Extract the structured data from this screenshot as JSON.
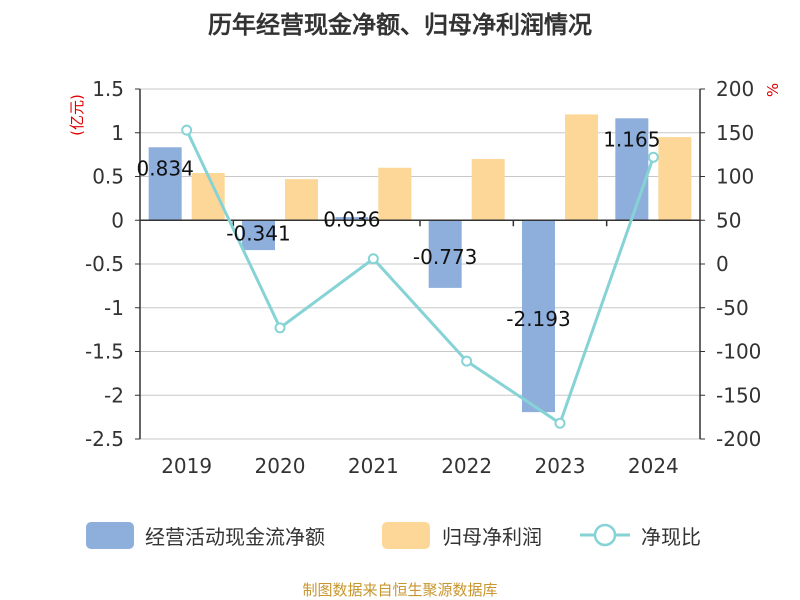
{
  "chart_data": {
    "type": "bar+line",
    "title": "历年经营现金净额、归母净利润情况",
    "categories": [
      "2019",
      "2020",
      "2021",
      "2022",
      "2023",
      "2024"
    ],
    "series": [
      {
        "name": "经营活动现金流净额",
        "type": "bar",
        "axis": "left",
        "color": "#8eaedc",
        "values": [
          0.834,
          -0.341,
          0.036,
          -0.773,
          -2.193,
          1.165
        ],
        "labels": [
          "0.834",
          "-0.341",
          "0.036",
          "-0.773",
          "-2.193",
          "1.165"
        ]
      },
      {
        "name": "归母净利润",
        "type": "bar",
        "axis": "left",
        "color": "#fdd797",
        "values": [
          0.54,
          0.47,
          0.6,
          0.7,
          1.21,
          0.95
        ]
      },
      {
        "name": "净现比",
        "type": "line",
        "axis": "right",
        "color": "#86d3d6",
        "values": [
          153,
          -73,
          6,
          -111,
          -182,
          122
        ]
      }
    ],
    "y_left": {
      "unit": "(亿元)",
      "min": -2.5,
      "max": 1.5,
      "ticks": [
        "1.5",
        "1",
        "0.5",
        "0",
        "-0.5",
        "-1",
        "-1.5",
        "-2",
        "-2.5"
      ]
    },
    "y_right": {
      "unit": "%",
      "min": -200,
      "max": 200,
      "ticks": [
        "200",
        "150",
        "100",
        "50",
        "0",
        "-50",
        "-100",
        "-150",
        "-200"
      ]
    },
    "grid": true,
    "legend_position": "bottom"
  },
  "source": "制图数据来自恒生聚源数据库"
}
